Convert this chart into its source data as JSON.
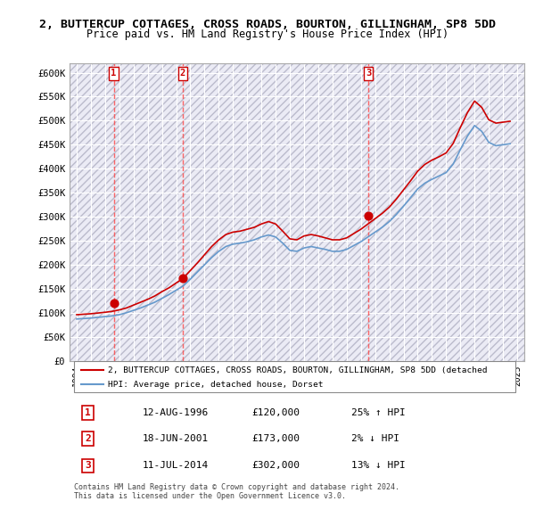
{
  "title": "2, BUTTERCUP COTTAGES, CROSS ROADS, BOURTON, GILLINGHAM, SP8 5DD",
  "subtitle": "Price paid vs. HM Land Registry's House Price Index (HPI)",
  "ylabel": "",
  "xlabel": "",
  "ylim": [
    0,
    620000
  ],
  "yticks": [
    0,
    50000,
    100000,
    150000,
    200000,
    250000,
    300000,
    350000,
    400000,
    450000,
    500000,
    550000,
    600000
  ],
  "ytick_labels": [
    "£0",
    "£50K",
    "£100K",
    "£150K",
    "£200K",
    "£250K",
    "£300K",
    "£350K",
    "£400K",
    "£450K",
    "£500K",
    "£550K",
    "£600K"
  ],
  "sale_dates": [
    "1996-08-12",
    "2001-06-18",
    "2014-07-11"
  ],
  "sale_prices": [
    120000,
    173000,
    302000
  ],
  "sale_labels": [
    "1",
    "2",
    "3"
  ],
  "legend_property": "2, BUTTERCUP COTTAGES, CROSS ROADS, BOURTON, GILLINGHAM, SP8 5DD (detached",
  "legend_hpi": "HPI: Average price, detached house, Dorset",
  "table_data": [
    [
      "1",
      "12-AUG-1996",
      "£120,000",
      "25% ↑ HPI"
    ],
    [
      "2",
      "18-JUN-2001",
      "£173,000",
      "2% ↓ HPI"
    ],
    [
      "3",
      "11-JUL-2014",
      "£302,000",
      "13% ↓ HPI"
    ]
  ],
  "footer": "Contains HM Land Registry data © Crown copyright and database right 2024.\nThis data is licensed under the Open Government Licence v3.0.",
  "property_line_color": "#cc0000",
  "hpi_line_color": "#6699cc",
  "sale_dot_color": "#cc0000",
  "dashed_line_color": "#ff4444",
  "background_hatch_color": "#e8e8f0",
  "hpi_data_years": [
    1994,
    1994.5,
    1995,
    1995.5,
    1996,
    1996.5,
    1997,
    1997.5,
    1998,
    1998.5,
    1999,
    1999.5,
    2000,
    2000.5,
    2001,
    2001.5,
    2002,
    2002.5,
    2003,
    2003.5,
    2004,
    2004.5,
    2005,
    2005.5,
    2006,
    2006.5,
    2007,
    2007.5,
    2008,
    2008.5,
    2009,
    2009.5,
    2010,
    2010.5,
    2011,
    2011.5,
    2012,
    2012.5,
    2013,
    2013.5,
    2014,
    2014.5,
    2015,
    2015.5,
    2016,
    2016.5,
    2017,
    2017.5,
    2018,
    2018.5,
    2019,
    2019.5,
    2020,
    2020.5,
    2021,
    2021.5,
    2022,
    2022.5,
    2023,
    2023.5,
    2024,
    2024.5
  ],
  "hpi_values": [
    87000,
    88000,
    89000,
    90500,
    92000,
    93500,
    96000,
    100000,
    105000,
    110000,
    116000,
    122000,
    130000,
    138000,
    147000,
    156000,
    170000,
    185000,
    200000,
    215000,
    228000,
    238000,
    243000,
    245000,
    248000,
    252000,
    258000,
    262000,
    258000,
    245000,
    230000,
    228000,
    235000,
    238000,
    235000,
    232000,
    228000,
    228000,
    232000,
    240000,
    248000,
    258000,
    268000,
    278000,
    290000,
    305000,
    322000,
    340000,
    358000,
    370000,
    378000,
    385000,
    392000,
    410000,
    440000,
    468000,
    490000,
    478000,
    455000,
    448000,
    450000,
    452000
  ],
  "property_hpi_years": [
    1994,
    1994.5,
    1995,
    1995.5,
    1996,
    1996.5,
    1997,
    1997.5,
    1998,
    1998.5,
    1999,
    1999.5,
    2000,
    2000.5,
    2001,
    2001.5,
    2002,
    2002.5,
    2003,
    2003.5,
    2004,
    2004.5,
    2005,
    2005.5,
    2006,
    2006.5,
    2007,
    2007.5,
    2008,
    2008.5,
    2009,
    2009.5,
    2010,
    2010.5,
    2011,
    2011.5,
    2012,
    2012.5,
    2013,
    2013.5,
    2014,
    2014.5,
    2015,
    2015.5,
    2016,
    2016.5,
    2017,
    2017.5,
    2018,
    2018.5,
    2019,
    2019.5,
    2020,
    2020.5,
    2021,
    2021.5,
    2022,
    2022.5,
    2023,
    2023.5,
    2024,
    2024.5
  ],
  "property_hpi_values": [
    96000,
    97000,
    98000,
    99500,
    101000,
    103000,
    106000,
    110000,
    116000,
    122000,
    128000,
    135000,
    144000,
    152000,
    162000,
    172000,
    188000,
    204000,
    221000,
    238000,
    252000,
    263000,
    268000,
    270000,
    274000,
    278000,
    285000,
    290000,
    285000,
    270000,
    254000,
    252000,
    260000,
    263000,
    260000,
    256000,
    252000,
    252000,
    256000,
    265000,
    274000,
    285000,
    296000,
    307000,
    320000,
    337000,
    356000,
    375000,
    395000,
    409000,
    418000,
    425000,
    433000,
    453000,
    486000,
    517000,
    541000,
    528000,
    502000,
    495000,
    497000,
    499000
  ],
  "xlim_start": 1993.5,
  "xlim_end": 2025.5
}
